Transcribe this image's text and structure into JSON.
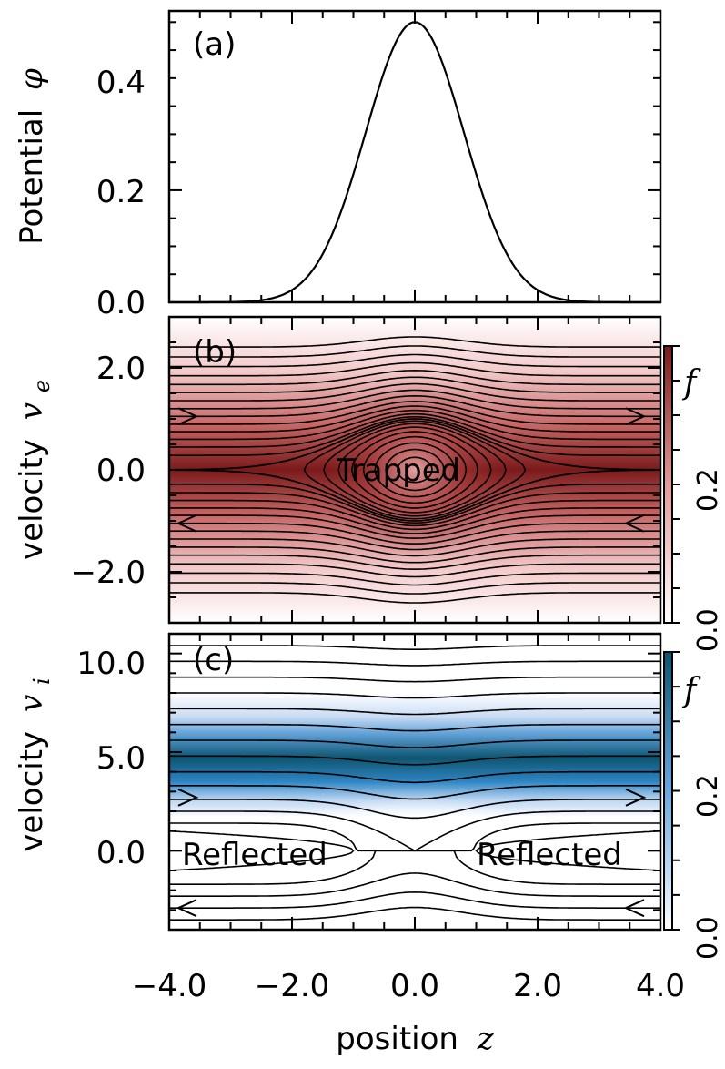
{
  "chart_data": [
    {
      "id": "a",
      "type": "line",
      "panel_label": "(a)",
      "ylabel": "Potential",
      "ylabel_symbol": "φ",
      "xlim": [
        -4.0,
        4.0
      ],
      "ylim": [
        0.0,
        0.52
      ],
      "yticks": [
        "0.0",
        "0.2",
        "0.4"
      ],
      "ytick_values": [
        0.0,
        0.2,
        0.4
      ],
      "curve": {
        "name": "phi(z)",
        "peak": 0.5,
        "center": 0.0,
        "width": 0.8
      }
    },
    {
      "id": "b",
      "type": "heatmap",
      "panel_label": "(b)",
      "ylabel": "velocity",
      "ylabel_symbol": "v",
      "ylabel_subscript": "e",
      "xlim": [
        -4.0,
        4.0
      ],
      "ylim": [
        -3.0,
        3.0
      ],
      "yticks": [
        "2.0",
        "0.0",
        "−2.0"
      ],
      "ytick_values": [
        2.0,
        0.0,
        -2.0
      ],
      "annotation": "Trapped",
      "colormap": [
        "#ffffff",
        "#7a1a1a"
      ],
      "colorbar": {
        "symbol": "f",
        "ticks": [
          "0.0",
          "0.2"
        ],
        "tick_values": [
          0.0,
          0.2
        ],
        "range": [
          0.0,
          0.4
        ]
      }
    },
    {
      "id": "c",
      "type": "heatmap",
      "panel_label": "(c)",
      "ylabel": "velocity",
      "ylabel_symbol": "v",
      "ylabel_subscript": "i",
      "xlabel": "position",
      "xlabel_symbol": "z",
      "xlim": [
        -4.0,
        4.0
      ],
      "ylim": [
        -4.0,
        11.0
      ],
      "xticks": [
        "−4.0",
        "−2.0",
        "0.0",
        "2.0",
        "4.0"
      ],
      "xtick_values": [
        -4.0,
        -2.0,
        0.0,
        2.0,
        4.0
      ],
      "yticks": [
        "10.0",
        "5.0",
        "0.0"
      ],
      "ytick_values": [
        10.0,
        5.0,
        0.0
      ],
      "annotations": [
        "Reflected",
        "Reflected"
      ],
      "colormap": [
        "#ffffff",
        "#0d5470"
      ],
      "colorbar": {
        "symbol": "f",
        "ticks": [
          "0.0",
          "0.2"
        ],
        "tick_values": [
          0.0,
          0.2
        ],
        "range": [
          0.0,
          0.4
        ]
      }
    }
  ]
}
